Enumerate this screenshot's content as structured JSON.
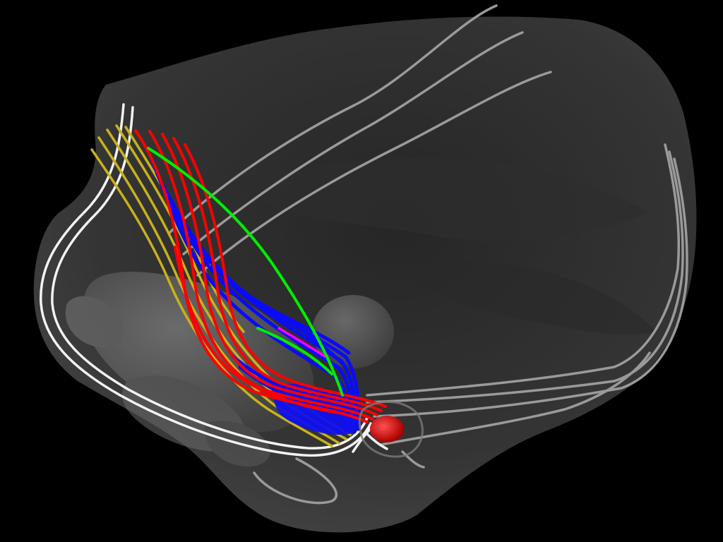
{
  "scene": {
    "background_color": "#000000",
    "volume_fill": "#3a3a3a",
    "volume_opacity": 0.82,
    "structure_fill": "#8a8a8a",
    "structure_opacity": 0.45
  },
  "tracts": [
    {
      "id": "gray-fibers",
      "color": "#9a9a9a",
      "count": 9
    },
    {
      "id": "white-fibers",
      "color": "#f2f2f2",
      "count": 3
    },
    {
      "id": "yellow-fibers",
      "color": "#c8b21a",
      "count": 5
    },
    {
      "id": "red-fibers",
      "color": "#ff0000",
      "count": 6
    },
    {
      "id": "blue-fibers",
      "color": "#0a0aff",
      "count": 8
    },
    {
      "id": "green-fibers",
      "color": "#00ee00",
      "count": 2
    },
    {
      "id": "magenta-fibers",
      "color": "#ff00ff",
      "count": 1
    }
  ],
  "markers": [
    {
      "id": "red-structure",
      "color": "#e00000"
    },
    {
      "id": "blue-structure",
      "color": "#1010ee"
    }
  ]
}
